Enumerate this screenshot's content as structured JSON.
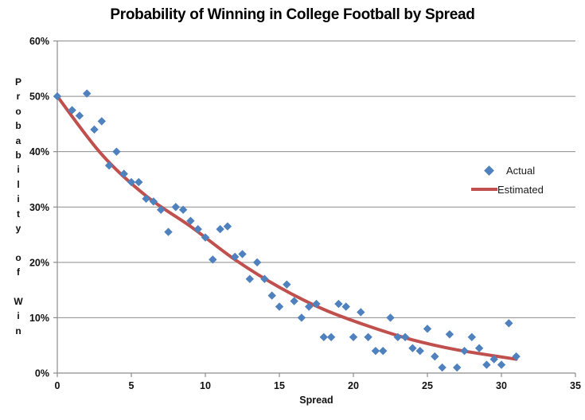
{
  "title": "Probability of Winning in College Football by Spread",
  "colors": {
    "marker": "#4E81BD",
    "trend": "#C0504D",
    "grid": "#8C8C8C",
    "axis": "#8C8C8C",
    "text": "#111111"
  },
  "legend": {
    "actual_label": "Actual",
    "estimated_label": "Estimated"
  },
  "chart_data": {
    "type": "scatter",
    "title": "Probability of Winning in College Football by Spread",
    "xlabel": "Spread",
    "ylabel": "Probability of Win",
    "xlim": [
      0,
      35
    ],
    "ylim_percent": [
      0,
      60
    ],
    "x_ticks": [
      "0",
      "5",
      "10",
      "15",
      "20",
      "25",
      "30",
      "35"
    ],
    "y_ticks": [
      "0%",
      "10%",
      "20%",
      "30%",
      "40%",
      "50%",
      "60%"
    ],
    "grid": "horizontal",
    "legend_position": "right",
    "series": [
      {
        "name": "Actual",
        "type": "scatter",
        "marker": "diamond",
        "x": [
          0,
          1,
          1.5,
          2,
          2.5,
          3,
          3.5,
          4,
          4.5,
          5,
          5.5,
          6,
          6.5,
          7,
          7.5,
          8,
          8.5,
          9,
          9.5,
          10,
          10.5,
          11,
          11.5,
          12,
          12.5,
          13,
          13.5,
          14,
          14.5,
          15,
          15.5,
          16,
          16.5,
          17,
          17.5,
          18,
          18.5,
          19,
          19.5,
          20,
          20.5,
          21,
          21.5,
          22,
          22.5,
          23,
          23.5,
          24,
          24.5,
          25,
          25.5,
          26,
          26.5,
          27,
          27.5,
          28,
          28.5,
          29,
          29.5,
          30,
          30.5,
          31
        ],
        "y_percent": [
          50,
          47.5,
          46.5,
          50.5,
          44,
          45.5,
          37.5,
          40,
          36,
          34.5,
          34.5,
          31.5,
          31,
          29.5,
          25.5,
          30,
          29.5,
          27.5,
          26,
          24.5,
          20.5,
          26,
          26.5,
          21,
          21.5,
          17,
          20,
          17,
          14,
          12,
          16,
          13,
          10,
          12,
          12.5,
          6.5,
          6.5,
          12.5,
          12,
          6.5,
          11,
          6.5,
          4,
          4,
          10,
          6.5,
          6.5,
          4.5,
          4,
          8,
          3,
          1,
          7,
          1,
          4,
          6.5,
          4.5,
          1.5,
          2.5,
          1.5,
          9,
          3
        ]
      },
      {
        "name": "Estimated",
        "type": "line",
        "x": [
          0,
          3,
          6,
          9,
          12,
          15,
          18,
          21,
          24,
          27,
          31
        ],
        "y_percent": [
          50,
          39.5,
          32,
          26.5,
          20.5,
          15.5,
          11.5,
          8.5,
          6,
          4.2,
          2.5
        ]
      }
    ]
  }
}
